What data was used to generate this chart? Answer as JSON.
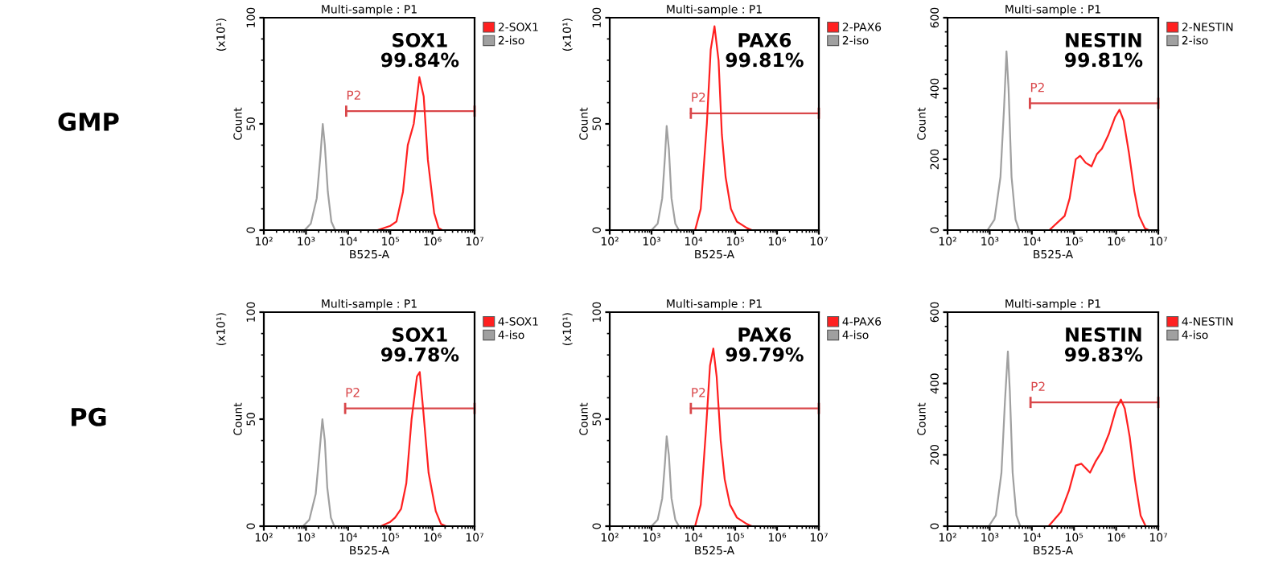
{
  "chart_data": [
    {
      "type": "line",
      "title": "Multi-sample : P1",
      "xlabel": "B525-A",
      "ylabel": "Count",
      "log": "x",
      "legend": "top right",
      "grid": false,
      "xlim": [
        100,
        10000000
      ],
      "xticks": [
        {
          "value": 100,
          "label": "10²"
        },
        {
          "value": 1000,
          "label": "10³"
        },
        {
          "value": 10000,
          "label": "10⁴"
        },
        {
          "value": 100000,
          "label": "10⁵"
        },
        {
          "value": 1000000,
          "label": "10⁶"
        },
        {
          "value": 10000000,
          "label": "10⁷"
        }
      ],
      "ylim": [
        0,
        100
      ],
      "yticks": [
        0,
        50,
        100
      ],
      "annotations": [
        "SOX1",
        "99.84%",
        "(x10¹)",
        "GMP"
      ],
      "series": [
        {
          "name": "P2",
          "color": "#d9474a",
          "x": [
            9000,
            10000000
          ],
          "values": [
            56,
            56
          ]
        },
        {
          "name": "2-SOX1",
          "color": "#ff2020",
          "x": [
            50000,
            100000,
            140000,
            200000,
            260000,
            360000,
            490000,
            620000,
            780000,
            1100000,
            1400000,
            1700000
          ],
          "values": [
            0,
            2,
            4,
            18,
            40,
            50,
            72,
            63,
            33,
            8,
            1,
            0
          ]
        },
        {
          "name": "2-iso",
          "color": "#a0a0a0",
          "x": [
            930,
            1300,
            1800,
            2200,
            2500,
            2800,
            3300,
            4000,
            4900
          ],
          "values": [
            0,
            3,
            15,
            35,
            50,
            40,
            18,
            4,
            0
          ]
        }
      ]
    },
    {
      "type": "line",
      "title": "Multi-sample : P1",
      "xlabel": "B525-A",
      "ylabel": "Count",
      "log": "x",
      "legend": "top right",
      "grid": false,
      "xlim": [
        100,
        10000000
      ],
      "xticks": [
        {
          "value": 100,
          "label": "10²"
        },
        {
          "value": 1000,
          "label": "10³"
        },
        {
          "value": 10000,
          "label": "10⁴"
        },
        {
          "value": 100000,
          "label": "10⁵"
        },
        {
          "value": 1000000,
          "label": "10⁶"
        },
        {
          "value": 10000000,
          "label": "10⁷"
        }
      ],
      "ylim": [
        0,
        100
      ],
      "yticks": [
        0,
        50,
        100
      ],
      "annotations": [
        "PAX6",
        "99.81%",
        "(x10¹)"
      ],
      "series": [
        {
          "name": "P2",
          "color": "#d9474a",
          "x": [
            8700,
            10000000
          ],
          "values": [
            55,
            55
          ]
        },
        {
          "name": "2-PAX6",
          "color": "#ff2020",
          "x": [
            11000,
            15000,
            21000,
            26000,
            32000,
            40000,
            48000,
            59000,
            79000,
            110000,
            190000,
            250000
          ],
          "values": [
            0,
            10,
            50,
            85,
            96,
            80,
            45,
            25,
            10,
            4,
            1,
            0
          ]
        },
        {
          "name": "2-iso",
          "color": "#a0a0a0",
          "x": [
            1000,
            1400,
            1800,
            2100,
            2300,
            2600,
            3000,
            3700,
            4500
          ],
          "values": [
            0,
            3,
            15,
            35,
            49,
            38,
            15,
            3,
            0
          ]
        }
      ]
    },
    {
      "type": "line",
      "title": "Multi-sample : P1",
      "xlabel": "B525-A",
      "ylabel": "Count",
      "log": "x",
      "legend": "top right",
      "grid": false,
      "xlim": [
        100,
        10000000
      ],
      "xticks": [
        {
          "value": 100,
          "label": "10²"
        },
        {
          "value": 1000,
          "label": "10³"
        },
        {
          "value": 10000,
          "label": "10⁴"
        },
        {
          "value": 100000,
          "label": "10⁵"
        },
        {
          "value": 1000000,
          "label": "10⁶"
        },
        {
          "value": 10000000,
          "label": "10⁷"
        }
      ],
      "ylim": [
        0,
        600
      ],
      "yticks": [
        0,
        200,
        400,
        600
      ],
      "annotations": [
        "NESTIN",
        "99.81%"
      ],
      "series": [
        {
          "name": "P2",
          "color": "#d9474a",
          "x": [
            9000,
            10000000
          ],
          "values": [
            358,
            358
          ]
        },
        {
          "name": "2-NESTIN",
          "color": "#ff2020",
          "x": [
            26000,
            60000,
            79000,
            110000,
            140000,
            190000,
            260000,
            350000,
            460000,
            660000,
            950000,
            1200000,
            1500000,
            2000000,
            2700000,
            3500000,
            4800000,
            6000000
          ],
          "values": [
            0,
            40,
            90,
            200,
            210,
            190,
            180,
            215,
            230,
            270,
            320,
            340,
            310,
            220,
            110,
            40,
            5,
            0
          ]
        },
        {
          "name": "2-iso",
          "color": "#a0a0a0",
          "x": [
            890,
            1300,
            1800,
            2200,
            2500,
            2800,
            3300,
            4100,
            5000
          ],
          "values": [
            0,
            30,
            150,
            350,
            505,
            400,
            150,
            30,
            0
          ]
        }
      ]
    },
    {
      "type": "line",
      "title": "Multi-sample : P1",
      "xlabel": "B525-A",
      "ylabel": "Count",
      "log": "x",
      "legend": "top right",
      "grid": false,
      "xlim": [
        100,
        10000000
      ],
      "xticks": [
        {
          "value": 100,
          "label": "10²"
        },
        {
          "value": 1000,
          "label": "10³"
        },
        {
          "value": 10000,
          "label": "10⁴"
        },
        {
          "value": 100000,
          "label": "10⁵"
        },
        {
          "value": 1000000,
          "label": "10⁶"
        },
        {
          "value": 10000000,
          "label": "10⁷"
        }
      ],
      "ylim": [
        0,
        100
      ],
      "yticks": [
        0,
        50,
        100
      ],
      "annotations": [
        "SOX1",
        "99.78%",
        "(x10¹)",
        "PG"
      ],
      "series": [
        {
          "name": "P2",
          "color": "#d9474a",
          "x": [
            8500,
            10000000
          ],
          "values": [
            55,
            55
          ]
        },
        {
          "name": "4-SOX1",
          "color": "#ff2020",
          "x": [
            60000,
            100000,
            130000,
            180000,
            240000,
            320000,
            430000,
            500000,
            600000,
            810000,
            1200000,
            1600000,
            2100000
          ],
          "values": [
            0,
            2,
            4,
            8,
            20,
            50,
            70,
            72,
            55,
            25,
            7,
            1,
            0
          ]
        },
        {
          "name": "4-iso",
          "color": "#a0a0a0",
          "x": [
            850,
            1200,
            1700,
            2100,
            2450,
            2800,
            3200,
            3900,
            4700
          ],
          "values": [
            0,
            3,
            15,
            35,
            50,
            40,
            18,
            4,
            0
          ]
        }
      ]
    },
    {
      "type": "line",
      "title": "Multi-sample : P1",
      "xlabel": "B525-A",
      "ylabel": "Count",
      "log": "x",
      "legend": "top right",
      "grid": false,
      "xlim": [
        100,
        10000000
      ],
      "xticks": [
        {
          "value": 100,
          "label": "10²"
        },
        {
          "value": 1000,
          "label": "10³"
        },
        {
          "value": 10000,
          "label": "10⁴"
        },
        {
          "value": 100000,
          "label": "10⁵"
        },
        {
          "value": 1000000,
          "label": "10⁶"
        },
        {
          "value": 10000000,
          "label": "10⁷"
        }
      ],
      "ylim": [
        0,
        100
      ],
      "yticks": [
        0,
        50,
        100
      ],
      "annotations": [
        "PAX6",
        "99.79%",
        "(x10¹)"
      ],
      "series": [
        {
          "name": "P2",
          "color": "#d9474a",
          "x": [
            8700,
            10000000
          ],
          "values": [
            55,
            55
          ]
        },
        {
          "name": "4-PAX6",
          "color": "#ff2020",
          "x": [
            11000,
            15000,
            20000,
            25000,
            30000,
            36000,
            45000,
            56000,
            75000,
            110000,
            190000,
            250000
          ],
          "values": [
            0,
            10,
            45,
            75,
            83,
            70,
            40,
            22,
            10,
            4,
            1,
            0
          ]
        },
        {
          "name": "4-iso",
          "color": "#a0a0a0",
          "x": [
            1000,
            1400,
            1800,
            2100,
            2300,
            2600,
            3000,
            3700,
            4500
          ],
          "values": [
            0,
            3,
            13,
            30,
            42,
            33,
            13,
            3,
            0
          ]
        }
      ]
    },
    {
      "type": "line",
      "title": "Multi-sample : P1",
      "xlabel": "B525-A",
      "ylabel": "Count",
      "log": "x",
      "legend": "top right",
      "grid": false,
      "xlim": [
        100,
        10000000
      ],
      "xticks": [
        {
          "value": 100,
          "label": "10²"
        },
        {
          "value": 1000,
          "label": "10³"
        },
        {
          "value": 10000,
          "label": "10⁴"
        },
        {
          "value": 100000,
          "label": "10⁵"
        },
        {
          "value": 1000000,
          "label": "10⁶"
        },
        {
          "value": 10000000,
          "label": "10⁷"
        }
      ],
      "ylim": [
        0,
        600
      ],
      "yticks": [
        0,
        200,
        400,
        600
      ],
      "annotations": [
        "NESTIN",
        "99.83%"
      ],
      "series": [
        {
          "name": "P2",
          "color": "#d9474a",
          "x": [
            9300,
            10000000
          ],
          "values": [
            347,
            347
          ]
        },
        {
          "name": "4-NESTIN",
          "color": "#ff2020",
          "x": [
            25000,
            49000,
            76000,
            110000,
            150000,
            240000,
            320000,
            460000,
            680000,
            1000000,
            1300000,
            1600000,
            2100000,
            2800000,
            3800000,
            5000000
          ],
          "values": [
            0,
            40,
            100,
            170,
            175,
            150,
            180,
            210,
            260,
            330,
            355,
            330,
            250,
            130,
            30,
            0
          ]
        },
        {
          "name": "4-iso",
          "color": "#a0a0a0",
          "x": [
            950,
            1400,
            1900,
            2300,
            2700,
            3000,
            3500,
            4300,
            5300
          ],
          "values": [
            0,
            30,
            150,
            350,
            490,
            380,
            150,
            30,
            0
          ]
        }
      ]
    }
  ]
}
